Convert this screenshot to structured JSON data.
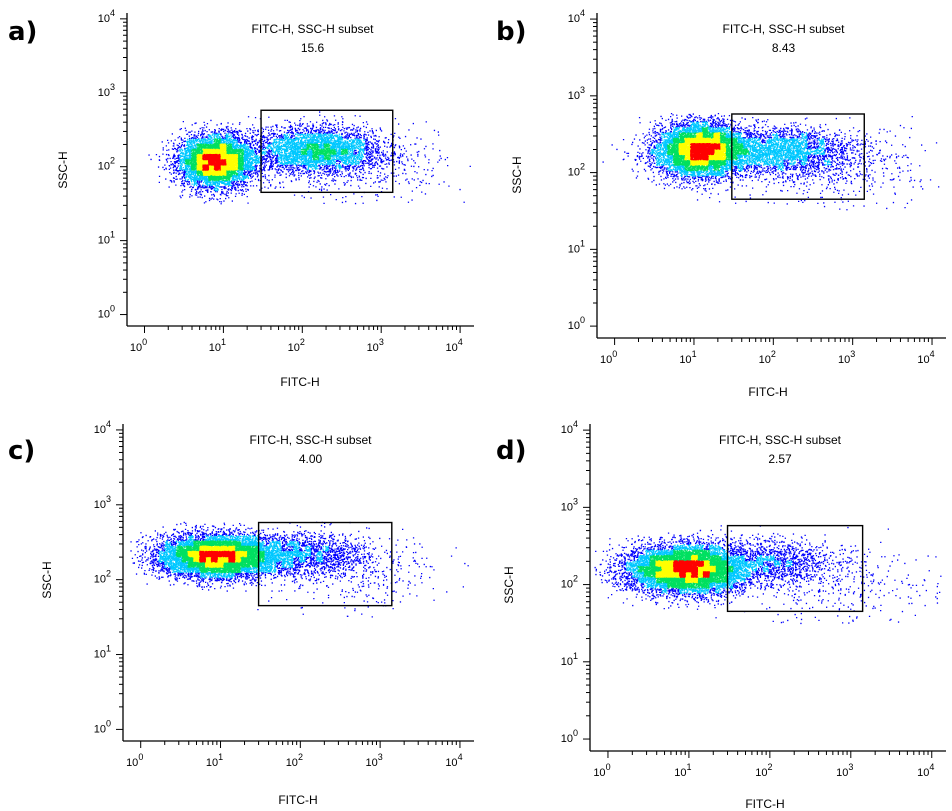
{
  "chart_data": [
    {
      "panel": "a)",
      "type": "scatter",
      "title": "FITC-H, SSC-H subset",
      "gate_value": "15.6",
      "xlabel": "FITC-H",
      "ylabel": "SSC-H",
      "x_scale": "log",
      "y_scale": "log",
      "xlim": [
        0.6,
        15000
      ],
      "ylim": [
        0.7,
        12000
      ],
      "x_ticks": [
        "10^0",
        "10^1",
        "10^2",
        "10^3",
        "10^4"
      ],
      "y_ticks": [
        "10^0",
        "10^1",
        "10^2",
        "10^3",
        "10^4"
      ],
      "gate": {
        "x": [
          30,
          1400
        ],
        "y": [
          45,
          580
        ]
      },
      "populations": [
        {
          "x": 8,
          "y": 120,
          "sx": 0.23,
          "sy": 0.17,
          "weight": 0.62
        },
        {
          "x": 150,
          "y": 170,
          "sx": 0.42,
          "sy": 0.16,
          "weight": 0.34
        },
        {
          "x": 500,
          "y": 110,
          "sx": 0.6,
          "sy": 0.25,
          "weight": 0.04
        }
      ],
      "hot_spot": {
        "x": 8,
        "y": 120
      }
    },
    {
      "panel": "b)",
      "type": "scatter",
      "title": "FITC-H, SSC-H subset",
      "gate_value": "8.43",
      "xlabel": "FITC-H",
      "ylabel": "SSC-H",
      "x_scale": "log",
      "y_scale": "log",
      "xlim": [
        0.6,
        15000
      ],
      "ylim": [
        0.7,
        12000
      ],
      "x_ticks": [
        "10^0",
        "10^1",
        "10^2",
        "10^3",
        "10^4"
      ],
      "y_ticks": [
        "10^0",
        "10^1",
        "10^2",
        "10^3",
        "10^4"
      ],
      "gate": {
        "x": [
          30,
          1400
        ],
        "y": [
          45,
          580
        ]
      },
      "populations": [
        {
          "x": 12,
          "y": 200,
          "sx": 0.28,
          "sy": 0.17,
          "weight": 0.72
        },
        {
          "x": 130,
          "y": 190,
          "sx": 0.45,
          "sy": 0.16,
          "weight": 0.24
        },
        {
          "x": 600,
          "y": 120,
          "sx": 0.6,
          "sy": 0.25,
          "weight": 0.04
        }
      ],
      "hot_spot": {
        "x": 13,
        "y": 200
      }
    },
    {
      "panel": "c)",
      "type": "scatter",
      "title": "FITC-H, SSC-H subset",
      "gate_value": "4.00",
      "xlabel": "FITC-H",
      "ylabel": "SSC-H",
      "x_scale": "log",
      "y_scale": "log",
      "xlim": [
        0.6,
        15000
      ],
      "ylim": [
        0.7,
        12000
      ],
      "x_ticks": [
        "10^0",
        "10^1",
        "10^2",
        "10^3",
        "10^4"
      ],
      "y_ticks": [
        "10^0",
        "10^1",
        "10^2",
        "10^3",
        "10^4"
      ],
      "gate": {
        "x": [
          30,
          1400
        ],
        "y": [
          45,
          580
        ]
      },
      "populations": [
        {
          "x": 9,
          "y": 210,
          "sx": 0.36,
          "sy": 0.14,
          "weight": 0.82
        },
        {
          "x": 110,
          "y": 220,
          "sx": 0.4,
          "sy": 0.14,
          "weight": 0.15
        },
        {
          "x": 500,
          "y": 120,
          "sx": 0.6,
          "sy": 0.25,
          "weight": 0.03
        }
      ],
      "hot_spot": {
        "x": 10,
        "y": 210
      }
    },
    {
      "panel": "d)",
      "type": "scatter",
      "title": "FITC-H, SSC-H subset",
      "gate_value": "2.57",
      "xlabel": "FITC-H",
      "ylabel": "SSC-H",
      "x_scale": "log",
      "y_scale": "log",
      "xlim": [
        0.6,
        15000
      ],
      "ylim": [
        0.7,
        12000
      ],
      "x_ticks": [
        "10^0",
        "10^1",
        "10^2",
        "10^3",
        "10^4"
      ],
      "y_ticks": [
        "10^0",
        "10^1",
        "10^2",
        "10^3",
        "10^4"
      ],
      "gate": {
        "x": [
          30,
          1400
        ],
        "y": [
          45,
          580
        ]
      },
      "populations": [
        {
          "x": 9,
          "y": 160,
          "sx": 0.36,
          "sy": 0.15,
          "weight": 0.86
        },
        {
          "x": 120,
          "y": 200,
          "sx": 0.38,
          "sy": 0.15,
          "weight": 0.11
        },
        {
          "x": 700,
          "y": 100,
          "sx": 0.6,
          "sy": 0.25,
          "weight": 0.03
        }
      ],
      "hot_spot": {
        "x": 11,
        "y": 160
      }
    }
  ],
  "colors": {
    "density_low": "#0000ff",
    "density_mid_low": "#00c8ff",
    "density_mid": "#00e060",
    "density_mid_high": "#ffff00",
    "density_high": "#ff0000",
    "axis": "#000000",
    "gate": "#000000"
  }
}
